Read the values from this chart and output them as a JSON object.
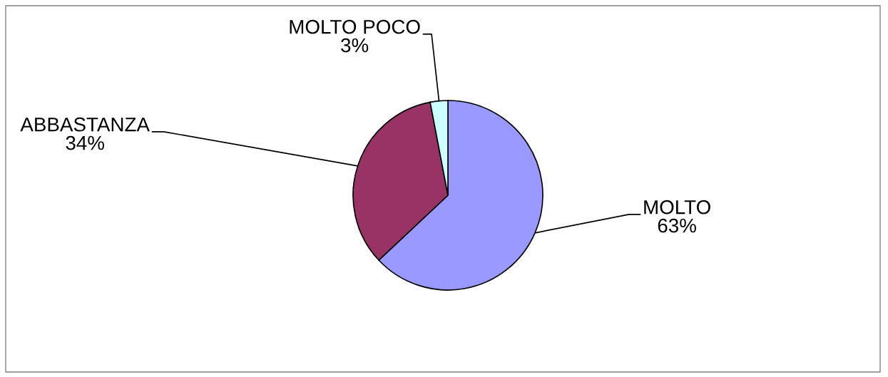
{
  "chart_data": {
    "type": "pie",
    "categories": [
      "MOLTO",
      "ABBASTANZA",
      "MOLTO POCO"
    ],
    "values": [
      63,
      34,
      3
    ],
    "colors": [
      "#9999ff",
      "#993366",
      "#ccffff"
    ],
    "value_labels": [
      "63%",
      "34%",
      "3%"
    ]
  }
}
